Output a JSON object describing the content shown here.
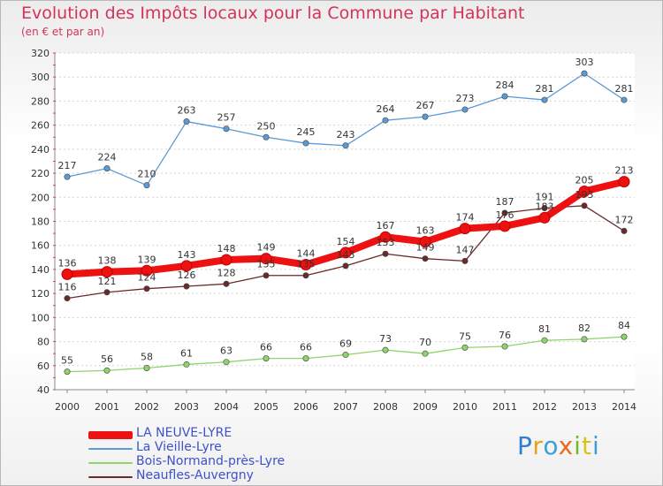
{
  "title": "Evolution des Impôts locaux pour la Commune par Habitant",
  "subtitle": "(en € et par an)",
  "logo": {
    "text": "Proxiti",
    "colors": [
      "#2f7fd0",
      "#e8a21c",
      "#3aa0d8",
      "#e86a1c",
      "#76b82a",
      "#d8c21c",
      "#3aa0d8"
    ]
  },
  "chart_data": {
    "type": "line",
    "title": "Evolution des Impôts locaux pour la Commune par Habitant",
    "subtitle": "(en € et par an)",
    "x": [
      "2000",
      "2001",
      "2002",
      "2003",
      "2004",
      "2005",
      "2006",
      "2007",
      "2008",
      "2009",
      "2010",
      "2011",
      "2012",
      "2013",
      "2014"
    ],
    "ylim": [
      40,
      320
    ],
    "yticks": [
      40,
      60,
      80,
      100,
      120,
      140,
      160,
      180,
      200,
      220,
      240,
      260,
      280,
      300,
      320
    ],
    "grid": "horizontal",
    "legend_position": "bottom-left",
    "series": [
      {
        "name": "LA NEUVE-LYRE",
        "color": "#ee1111",
        "values": [
          136,
          138,
          139,
          143,
          148,
          149,
          144,
          154,
          167,
          163,
          174,
          176,
          183,
          205,
          213
        ],
        "labels": [
          "136",
          "138",
          "139",
          "143",
          "148",
          "149",
          "144",
          "154",
          "167",
          "163",
          "174",
          "176",
          "183",
          "205",
          "213"
        ]
      },
      {
        "name": "La Vieille-Lyre",
        "color": "#5b9bd5",
        "values": [
          217,
          224,
          210,
          263,
          257,
          250,
          245,
          243,
          264,
          267,
          273,
          284,
          281,
          303,
          281
        ],
        "labels": [
          "217",
          "224",
          "210",
          "263",
          "257",
          "250",
          "245",
          "243",
          "264",
          "267",
          "273",
          "284",
          "281",
          "303",
          "281"
        ]
      },
      {
        "name": "Bois-Normand-près-Lyre",
        "color": "#8fd46a",
        "values": [
          55,
          56,
          58,
          61,
          63,
          66,
          66,
          69,
          73,
          70,
          75,
          76,
          81,
          82,
          84
        ],
        "labels": [
          "55",
          "56",
          "58",
          "61",
          "63",
          "66",
          "66",
          "69",
          "73",
          "70",
          "75",
          "76",
          "81",
          "82",
          "84"
        ]
      },
      {
        "name": "Neaufles-Auvergny",
        "color": "#6b2a2a",
        "values": [
          116,
          121,
          124,
          126,
          128,
          135,
          135,
          143,
          153,
          149,
          147,
          187,
          191,
          193,
          172
        ],
        "labels": [
          "116",
          "121",
          "124",
          "126",
          "128",
          "135",
          "135",
          "143",
          "153",
          "149",
          "147",
          "187",
          "191",
          "193",
          "172"
        ]
      }
    ]
  }
}
